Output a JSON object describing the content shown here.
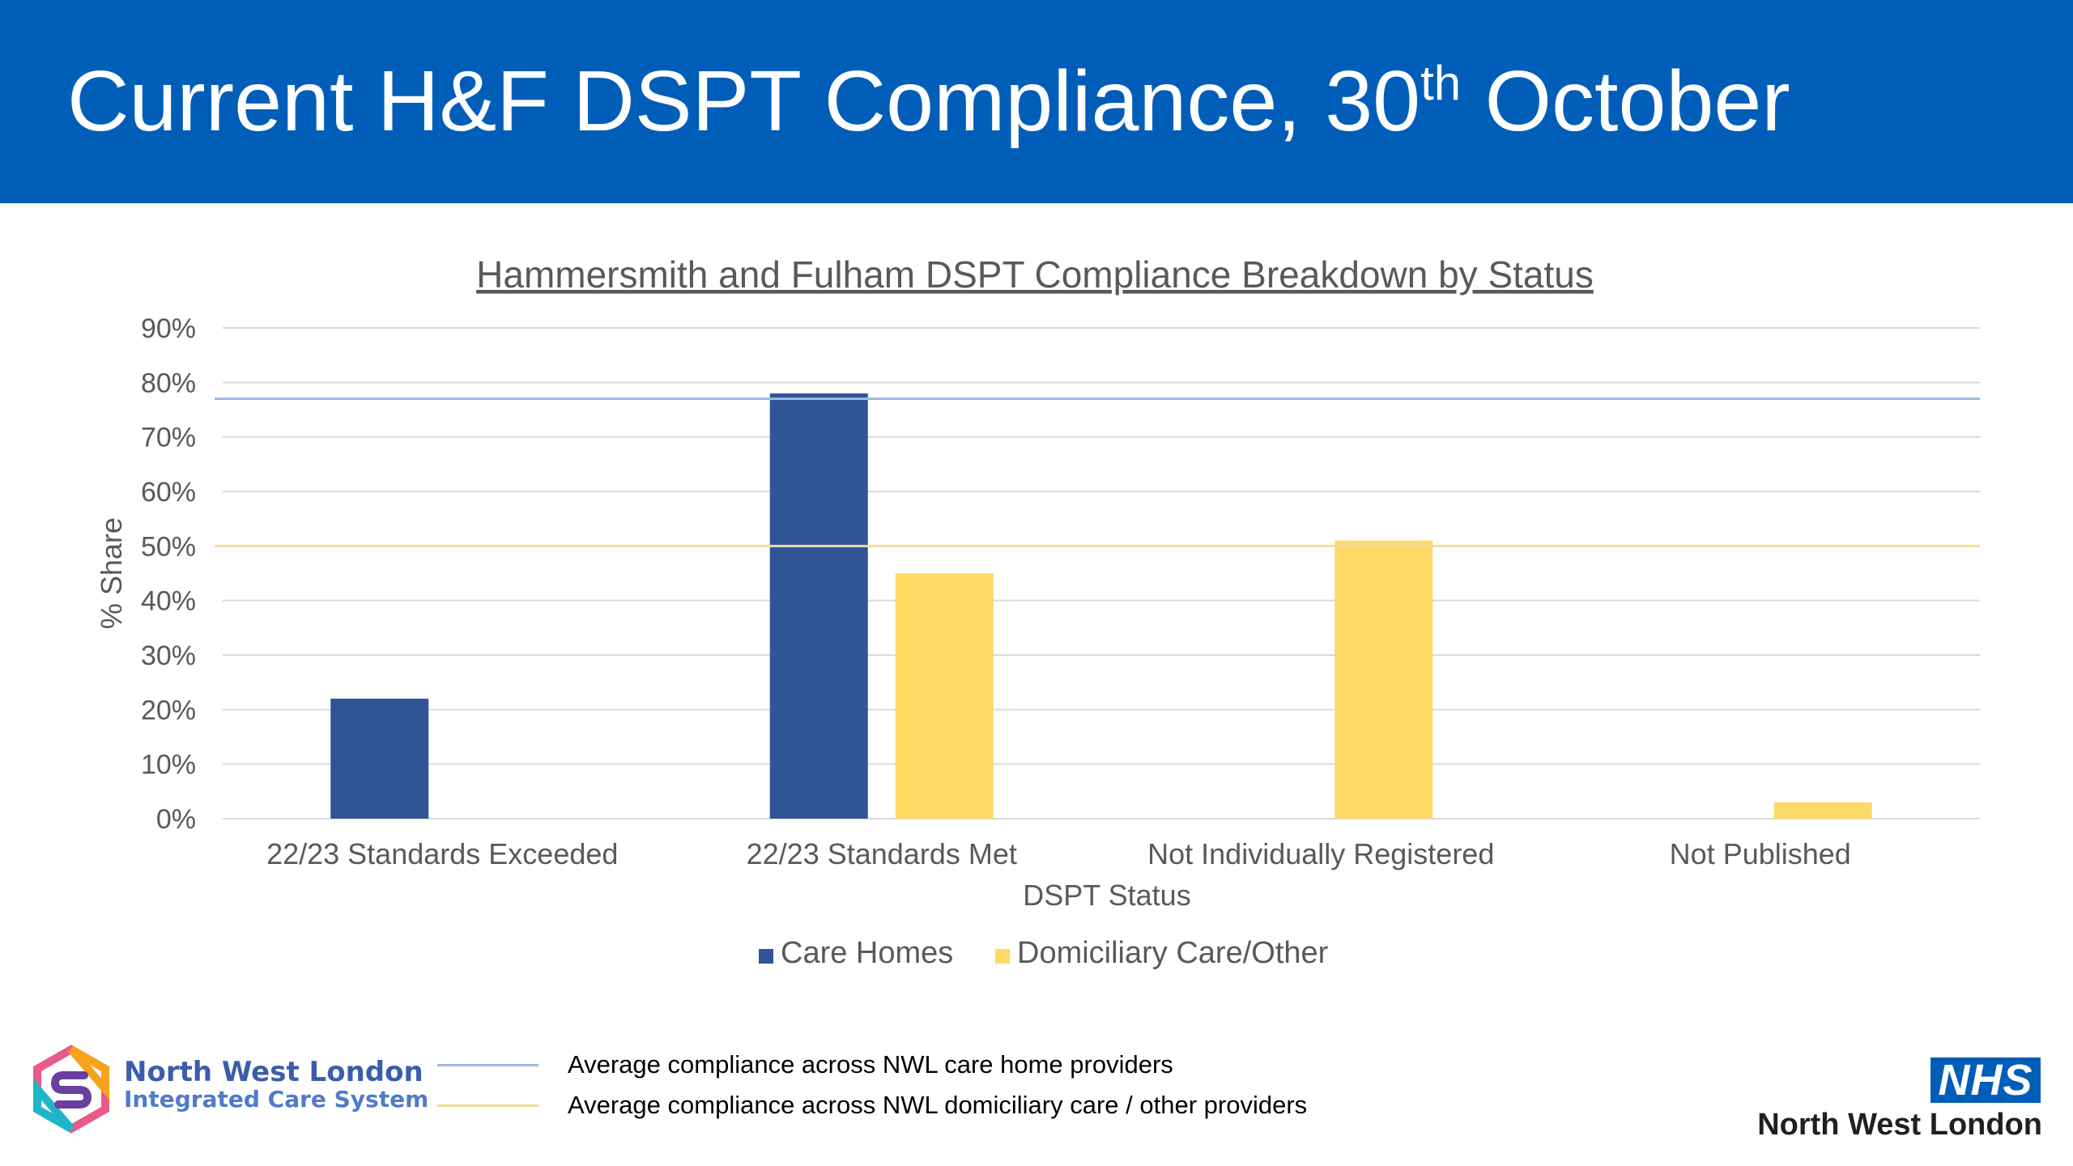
{
  "header": {
    "title_main": "Current H&F DSPT Compliance, 30",
    "title_sup": "th",
    "title_end": " October",
    "background": "#005eb8"
  },
  "chart_data": {
    "type": "bar",
    "title": "Hammersmith and Fulham DSPT Compliance Breakdown by Status",
    "xlabel": "DSPT Status",
    "ylabel": "% Share",
    "ylim": [
      0,
      90
    ],
    "yticks": [
      "0%",
      "10%",
      "20%",
      "30%",
      "40%",
      "50%",
      "60%",
      "70%",
      "80%",
      "90%"
    ],
    "grid": true,
    "legend_position": "bottom",
    "categories": [
      "22/23 Standards Exceeded",
      "22/23 Standards Met",
      "Not Individually Registered",
      "Not Published"
    ],
    "series": [
      {
        "name": "Care Homes",
        "color": "#2f5597",
        "values": [
          22,
          78,
          0,
          0
        ]
      },
      {
        "name": "Domiciliary Care/Other",
        "color": "#ffd966",
        "values": [
          0,
          45,
          51,
          3
        ]
      }
    ],
    "reference_lines": [
      {
        "value": 77,
        "color": "#9fb8e0"
      },
      {
        "value": 50,
        "color": "#f3dc9a"
      }
    ]
  },
  "reference_legend": [
    {
      "label": "Average compliance across NWL care home providers",
      "color": "#9fb8e0"
    },
    {
      "label": "Average compliance across NWL domiciliary care / other providers",
      "color": "#f3dc9a"
    }
  ],
  "footer": {
    "ics_line1": "North West London",
    "ics_line2": "Integrated Care System",
    "nhs_badge": "NHS",
    "nhs_region": "North West London"
  }
}
